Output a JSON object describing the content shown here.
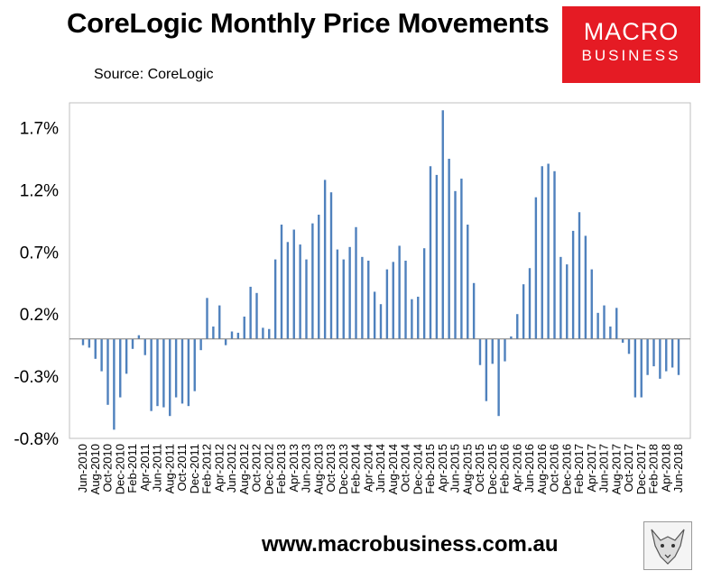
{
  "title": "CoreLogic Monthly Price Movements",
  "subtitle": "Source: CoreLogic",
  "logo": {
    "line1": "MACRO",
    "line2": "BUSINESS"
  },
  "footer": "www.macrobusiness.com.au",
  "colors": {
    "bar": "#4f81bd",
    "axis": "#7f7f7f",
    "logo_bg": "#e51b24"
  },
  "chart_data": {
    "type": "bar",
    "title": "",
    "xlabel": "",
    "ylabel": "",
    "ylim": [
      -0.8,
      1.9
    ],
    "yticks": [
      -0.8,
      -0.3,
      0.2,
      0.7,
      1.2,
      1.7
    ],
    "ytick_labels": [
      "-0.8%",
      "-0.3%",
      "0.2%",
      "0.7%",
      "1.2%",
      "1.7%"
    ],
    "grid": false,
    "legend": "none",
    "xtick_labels": [
      "Jun-2010",
      "Aug-2010",
      "Oct-2010",
      "Dec-2010",
      "Feb-2011",
      "Apr-2011",
      "Jun-2011",
      "Aug-2011",
      "Oct-2011",
      "Dec-2011",
      "Feb-2012",
      "Apr-2012",
      "Jun-2012",
      "Aug-2012",
      "Oct-2012",
      "Dec-2012",
      "Feb-2013",
      "Apr-2013",
      "Jun-2013",
      "Aug-2013",
      "Oct-2013",
      "Dec-2013",
      "Feb-2014",
      "Apr-2014",
      "Jun-2014",
      "Aug-2014",
      "Oct-2014",
      "Dec-2014",
      "Feb-2015",
      "Apr-2015",
      "Jun-2015",
      "Aug-2015",
      "Oct-2015",
      "Dec-2015",
      "Feb-2016",
      "Apr-2016",
      "Jun-2016",
      "Aug-2016",
      "Oct-2016",
      "Dec-2016",
      "Feb-2017",
      "Apr-2017",
      "Jun-2017",
      "Aug-2017",
      "Oct-2017",
      "Dec-2017",
      "Feb-2018",
      "Apr-2018",
      "Jun-2018"
    ],
    "categories": [
      "Jun-2010",
      "Jul-2010",
      "Aug-2010",
      "Sep-2010",
      "Oct-2010",
      "Nov-2010",
      "Dec-2010",
      "Jan-2011",
      "Feb-2011",
      "Mar-2011",
      "Apr-2011",
      "May-2011",
      "Jun-2011",
      "Jul-2011",
      "Aug-2011",
      "Sep-2011",
      "Oct-2011",
      "Nov-2011",
      "Dec-2011",
      "Jan-2012",
      "Feb-2012",
      "Mar-2012",
      "Apr-2012",
      "May-2012",
      "Jun-2012",
      "Jul-2012",
      "Aug-2012",
      "Sep-2012",
      "Oct-2012",
      "Nov-2012",
      "Dec-2012",
      "Jan-2013",
      "Feb-2013",
      "Mar-2013",
      "Apr-2013",
      "May-2013",
      "Jun-2013",
      "Jul-2013",
      "Aug-2013",
      "Sep-2013",
      "Oct-2013",
      "Nov-2013",
      "Dec-2013",
      "Jan-2014",
      "Feb-2014",
      "Mar-2014",
      "Apr-2014",
      "May-2014",
      "Jun-2014",
      "Jul-2014",
      "Aug-2014",
      "Sep-2014",
      "Oct-2014",
      "Nov-2014",
      "Dec-2014",
      "Jan-2015",
      "Feb-2015",
      "Mar-2015",
      "Apr-2015",
      "May-2015",
      "Jun-2015",
      "Jul-2015",
      "Aug-2015",
      "Sep-2015",
      "Oct-2015",
      "Nov-2015",
      "Dec-2015",
      "Jan-2016",
      "Feb-2016",
      "Mar-2016",
      "Apr-2016",
      "May-2016",
      "Jun-2016",
      "Jul-2016",
      "Aug-2016",
      "Sep-2016",
      "Oct-2016",
      "Nov-2016",
      "Dec-2016",
      "Jan-2017",
      "Feb-2017",
      "Mar-2017",
      "Apr-2017",
      "May-2017",
      "Jun-2017",
      "Jul-2017",
      "Aug-2017",
      "Sep-2017",
      "Oct-2017",
      "Nov-2017",
      "Dec-2017",
      "Jan-2018",
      "Feb-2018",
      "Mar-2018",
      "Apr-2018",
      "May-2018",
      "Jun-2018"
    ],
    "values": [
      -0.05,
      -0.07,
      -0.16,
      -0.26,
      -0.53,
      -0.73,
      -0.47,
      -0.28,
      -0.08,
      0.03,
      -0.13,
      -0.58,
      -0.54,
      -0.55,
      -0.62,
      -0.47,
      -0.52,
      -0.54,
      -0.42,
      -0.09,
      0.33,
      0.1,
      0.27,
      -0.05,
      0.06,
      0.05,
      0.18,
      0.42,
      0.37,
      0.09,
      0.08,
      0.64,
      0.92,
      0.78,
      0.88,
      0.76,
      0.64,
      0.93,
      1.0,
      1.28,
      1.18,
      0.72,
      0.64,
      0.74,
      0.9,
      0.66,
      0.63,
      0.38,
      0.28,
      0.56,
      0.62,
      0.75,
      0.63,
      0.32,
      0.34,
      0.73,
      1.39,
      1.32,
      1.84,
      1.45,
      1.19,
      1.29,
      0.92,
      0.45,
      -0.21,
      -0.5,
      -0.2,
      -0.62,
      -0.18,
      0.02,
      0.2,
      0.44,
      0.57,
      1.14,
      1.39,
      1.41,
      1.35,
      0.66,
      0.6,
      0.87,
      1.02,
      0.83,
      0.56,
      0.21,
      0.27,
      0.1,
      0.25,
      -0.03,
      -0.12,
      -0.47,
      -0.47,
      -0.29,
      -0.22,
      -0.32,
      -0.26,
      -0.23,
      -0.29
    ]
  }
}
